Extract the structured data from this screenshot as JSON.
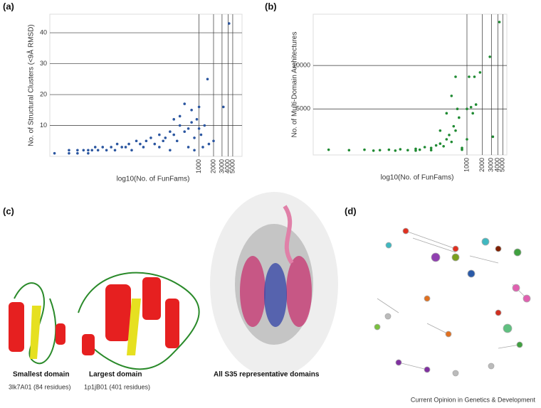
{
  "chart_data": [
    {
      "type": "scatter",
      "label": "(a)",
      "y_label": "No. of Structural Clusters (<9Å RMSD)",
      "x_label": "log10(No. of FunFams)",
      "log_x": true,
      "xlim": [
        0.8,
        7800
      ],
      "xticks": [
        1000,
        2000,
        3000,
        4000,
        5000
      ],
      "ylim": [
        0,
        46
      ],
      "yticks": [
        10,
        20,
        30,
        40
      ],
      "grid": true,
      "color": "#2b56a0",
      "x": [
        1,
        2,
        2,
        3,
        3,
        4,
        5,
        5,
        6,
        7,
        8,
        10,
        12,
        15,
        18,
        20,
        25,
        30,
        35,
        40,
        50,
        60,
        70,
        80,
        100,
        120,
        150,
        180,
        200,
        250,
        300,
        300,
        350,
        400,
        400,
        500,
        500,
        600,
        700,
        700,
        800,
        900,
        1000,
        1000,
        1100,
        1300,
        1500,
        1600,
        2000,
        3200,
        4200,
        150,
        250,
        600,
        800,
        1200
      ],
      "values": [
        1,
        2,
        1,
        2,
        1,
        2,
        1,
        2,
        2,
        3,
        2,
        3,
        2,
        3,
        2,
        4,
        3,
        3,
        4,
        2,
        5,
        4,
        3,
        5,
        6,
        4,
        7,
        5,
        6,
        8,
        7,
        12,
        5,
        10,
        13,
        8,
        17,
        9,
        11,
        15,
        6,
        12,
        9,
        16,
        7,
        10,
        25,
        4,
        5,
        16,
        43,
        3,
        2,
        3,
        2,
        3
      ]
    },
    {
      "type": "scatter",
      "label": "(b)",
      "y_label": "No. of Multi-Domain Architectures",
      "x_label": "log10(No. of FunFams)",
      "log_x": true,
      "xlim": [
        1,
        6000
      ],
      "xticks": [
        1000,
        2000,
        3000,
        4000,
        5000
      ],
      "ylim": [
        -300,
        15900
      ],
      "yticks": [
        5000,
        10000
      ],
      "grid": true,
      "color": "#1f8a32",
      "x": [
        2,
        5,
        10,
        15,
        20,
        30,
        40,
        50,
        70,
        100,
        120,
        150,
        200,
        250,
        300,
        350,
        400,
        450,
        500,
        550,
        600,
        600,
        650,
        700,
        500,
        400,
        300,
        800,
        1000,
        1100,
        1200,
        1300,
        1400,
        1500,
        1800,
        2800,
        3200,
        4300,
        100,
        200,
        800,
        1000
      ],
      "values": [
        300,
        250,
        300,
        200,
        250,
        300,
        200,
        350,
        250,
        400,
        300,
        600,
        500,
        800,
        1000,
        700,
        1500,
        2000,
        1200,
        3000,
        8700,
        2500,
        5000,
        4000,
        6500,
        4500,
        2500,
        500,
        5000,
        8700,
        5200,
        4500,
        8700,
        5500,
        9200,
        11000,
        1800,
        15000,
        200,
        250,
        300,
        1500
      ]
    }
  ],
  "panel_c": {
    "label": "(c)",
    "small_title": "Smallest domain",
    "small_sub": "3lk7A01 (84 residues)",
    "large_title": "Largest domain",
    "large_sub": "1p1jB01 (401 residues)",
    "all_title": "All S35 representative domains"
  },
  "panel_d": {
    "label": "(d)"
  },
  "footer": "Current Opinion in Genetics & Development"
}
